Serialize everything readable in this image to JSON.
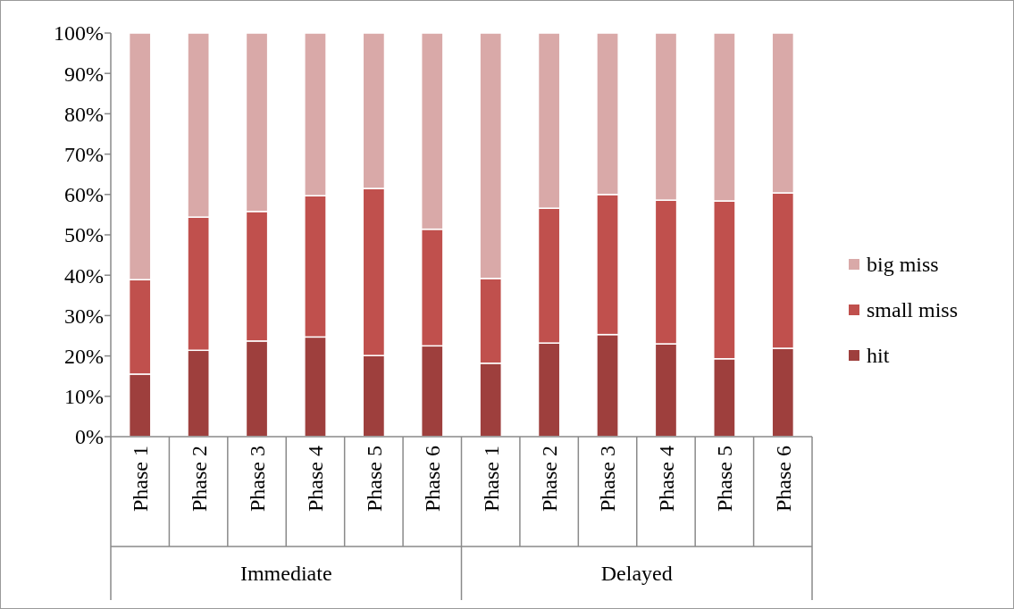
{
  "chart_data": {
    "type": "bar",
    "stacked": true,
    "categories": [
      "Phase 1",
      "Phase 2",
      "Phase 3",
      "Phase 4",
      "Phase 5",
      "Phase 6",
      "Phase 1",
      "Phase 2",
      "Phase 3",
      "Phase 4",
      "Phase 5",
      "Phase 6"
    ],
    "series": [
      {
        "name": "hit",
        "color": "#9e3f3d",
        "values": [
          15.5,
          21.4,
          23.7,
          24.7,
          20.1,
          22.5,
          18.2,
          23.2,
          25.3,
          23.0,
          19.3,
          21.9
        ]
      },
      {
        "name": "small miss",
        "color": "#c0504d",
        "values": [
          23.4,
          33.0,
          32.1,
          35.0,
          41.4,
          28.9,
          21.0,
          33.4,
          34.7,
          35.6,
          39.1,
          38.5
        ]
      },
      {
        "name": "big miss",
        "color": "#d9a9a8",
        "values": [
          61.1,
          45.6,
          44.2,
          40.3,
          38.5,
          48.6,
          60.8,
          43.4,
          40.0,
          41.4,
          41.6,
          39.6
        ]
      }
    ],
    "ylim": [
      0,
      100
    ],
    "yticks": [
      {
        "value": 0,
        "label": "0%"
      },
      {
        "value": 10,
        "label": "10%"
      },
      {
        "value": 20,
        "label": "20%"
      },
      {
        "value": 30,
        "label": "30%"
      },
      {
        "value": 40,
        "label": "40%"
      },
      {
        "value": 50,
        "label": "50%"
      },
      {
        "value": 60,
        "label": "60%"
      },
      {
        "value": 70,
        "label": "70%"
      },
      {
        "value": 80,
        "label": "80%"
      },
      {
        "value": 90,
        "label": "90%"
      },
      {
        "value": 100,
        "label": "100%"
      }
    ],
    "annotations": [
      "Immediate",
      "Delayed"
    ],
    "legend": "right",
    "grid": false
  }
}
